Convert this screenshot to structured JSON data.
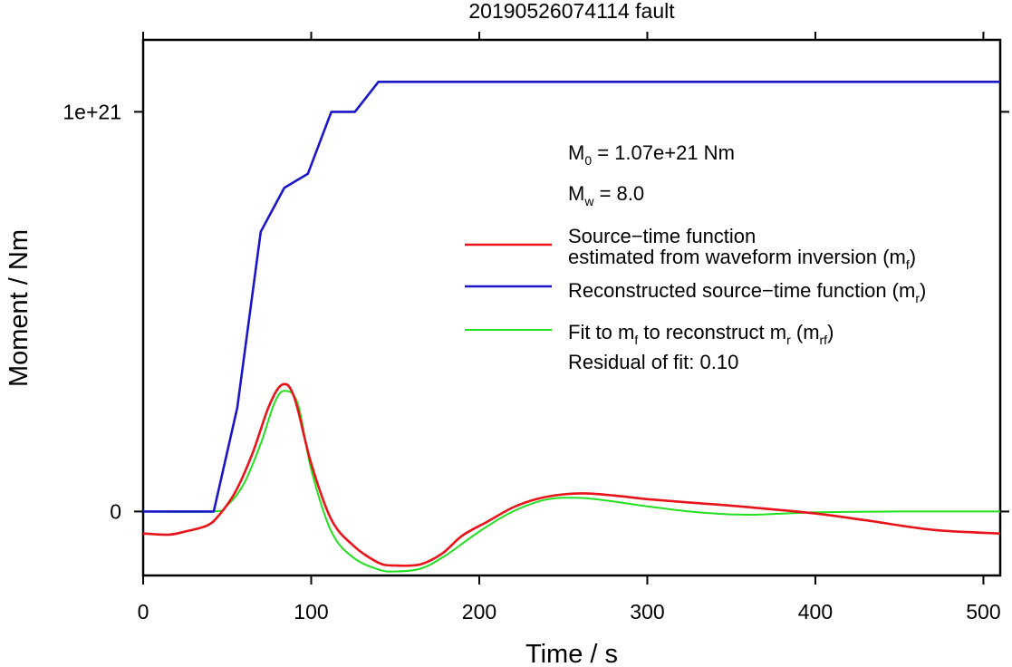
{
  "chart_data": {
    "type": "line",
    "title": "20190526074114 fault",
    "xlabel": "Time / s",
    "ylabel": "Moment / Nm",
    "xlim": [
      0,
      510
    ],
    "ylim": [
      -1.6e+20,
      1.18e+21
    ],
    "x_ticks": [
      {
        "value": 0,
        "label": "0"
      },
      {
        "value": 100,
        "label": "100"
      },
      {
        "value": 200,
        "label": "200"
      },
      {
        "value": 300,
        "label": "300"
      },
      {
        "value": 400,
        "label": "400"
      },
      {
        "value": 500,
        "label": "500"
      }
    ],
    "y_ticks": [
      {
        "value": 0,
        "label": "0"
      },
      {
        "value": 1e+21,
        "label": "1e+21"
      }
    ],
    "grid": false,
    "legend_position": "right",
    "annotations": {
      "m0_main": "M",
      "m0_sub": "0",
      "m0_value": " = 1.07e+21 Nm",
      "mw_main": "M",
      "mw_sub": "w",
      "mw_value": " = 8.0",
      "residual": "Residual of fit: 0.10"
    },
    "series": [
      {
        "key": "mf",
        "color": "#e8141a",
        "legend_lines": [
          [
            {
              "t": "Source−time function"
            }
          ],
          [
            {
              "t": "estimated from waveform inversion (m"
            },
            {
              "t": "f",
              "sub": true
            },
            {
              "t": ")"
            }
          ]
        ],
        "x": [
          0,
          15,
          25,
          38,
          45,
          55,
          65,
          75,
          83,
          90,
          100,
          112,
          125,
          140,
          150,
          165,
          178,
          190,
          205,
          220,
          235,
          250,
          265,
          285,
          300,
          330,
          360,
          400,
          430,
          470,
          510
        ],
        "y": [
          -5.5e+19,
          -5.8e+19,
          -5e+19,
          -3.5e+19,
          -1e+19,
          5e+19,
          1.45e+20,
          2.65e+20,
          3.18e+20,
          2.85e+20,
          1.2e+20,
          -2e+19,
          -8.5e+19,
          -1.28e+20,
          -1.35e+20,
          -1.32e+20,
          -1.05e+20,
          -6e+19,
          -2.5e+19,
          1e+19,
          3.2e+19,
          4.3e+19,
          4.5e+19,
          3.8e+19,
          3.1e+19,
          2.1e+19,
          1.1e+19,
          -5e+18,
          -2.2e+19,
          -4.6e+19,
          -5.5e+19
        ]
      },
      {
        "key": "mr",
        "color": "#1b16c8",
        "legend_lines": [
          [
            {
              "t": "Reconstructed source−time function (m"
            },
            {
              "t": "r",
              "sub": true
            },
            {
              "t": ")"
            }
          ]
        ],
        "x": [
          0,
          42,
          56,
          70,
          84,
          98,
          112,
          126,
          140,
          510
        ],
        "y": [
          0,
          0,
          2.6e+20,
          7e+20,
          8.1e+20,
          8.45e+20,
          1e+21,
          1e+21,
          1.075e+21,
          1.075e+21
        ]
      },
      {
        "key": "mrf",
        "color": "#22e01f",
        "legend_lines": [
          [
            {
              "t": "Fit to m"
            },
            {
              "t": "f",
              "sub": true
            },
            {
              "t": " to reconstruct m"
            },
            {
              "t": "r",
              "sub": true
            },
            {
              "t": " (m"
            },
            {
              "t": "rf",
              "sub": true
            },
            {
              "t": ")"
            }
          ]
        ],
        "x": [
          0,
          42,
          50,
          60,
          70,
          78,
          84,
          92,
          100,
          112,
          125,
          140,
          150,
          165,
          180,
          200,
          220,
          240,
          260,
          280,
          300,
          330,
          360,
          400,
          450,
          510
        ],
        "y": [
          0,
          0,
          1.5e+19,
          7e+19,
          1.7e+20,
          2.7e+20,
          3.02e+20,
          2.7e+20,
          1.05e+20,
          -5e+19,
          -1.15e+20,
          -1.45e+20,
          -1.5e+20,
          -1.43e+20,
          -1.1e+20,
          -5e+19,
          0,
          3e+19,
          3.4e+19,
          2.5e+19,
          1.3e+19,
          -2e+18,
          -8e+18,
          -2e+18,
          0,
          0
        ]
      }
    ]
  }
}
